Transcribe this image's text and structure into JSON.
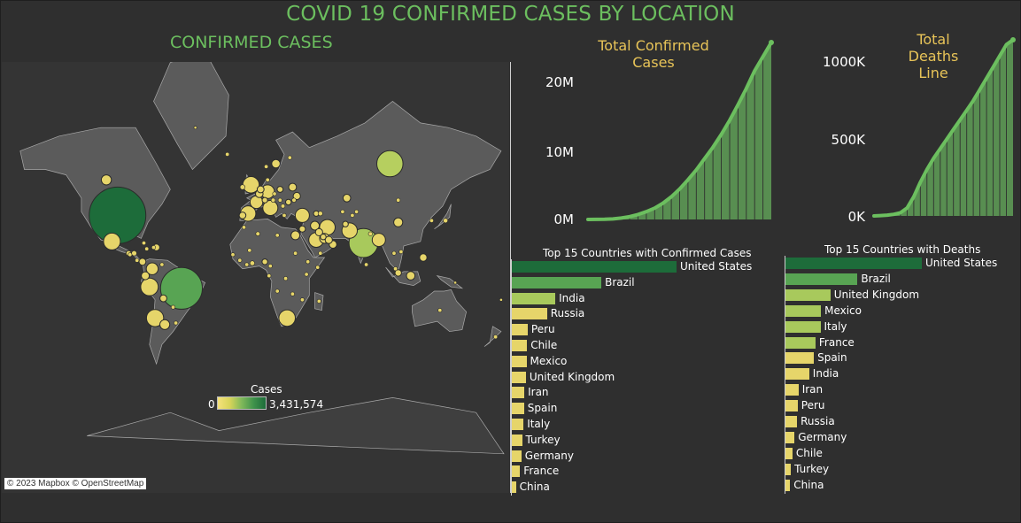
{
  "dashboard": {
    "title": "COVID 19 CONFIRMED CASES BY LOCATION",
    "map_title": "CONFIRMED CASES",
    "attribution": "© 2023 Mapbox © OpenStreetMap",
    "legend": {
      "title": "Cases",
      "min": "0",
      "max": "3,431,574"
    },
    "colors": {
      "title": "#6cbf5f",
      "accent": "#e8c458",
      "line": "#6cbf5f",
      "dark_green": "#1d6c3a",
      "yellow": "#e8d66a"
    }
  },
  "chart_data": [
    {
      "type": "area",
      "title": "Total Confirmed Cases",
      "y_ticks": [
        "0M",
        "10M",
        "20M"
      ],
      "ylim": [
        0,
        25000000
      ],
      "series": [
        {
          "values": [
            0,
            10000,
            30000,
            80000,
            200000,
            400000,
            700000,
            1100000,
            1600000,
            2300000,
            3200000,
            4300000,
            5600000,
            7000000,
            8600000,
            10200000,
            12000000,
            14000000,
            16200000,
            18500000,
            21000000,
            23000000,
            25000000
          ]
        }
      ]
    },
    {
      "type": "area",
      "title": "Total Deaths Line",
      "y_ticks": [
        "0K",
        "500K",
        "1000K"
      ],
      "ylim": [
        0,
        1100000
      ],
      "series": [
        {
          "values": [
            0,
            2000,
            5000,
            10000,
            20000,
            50000,
            120000,
            210000,
            290000,
            360000,
            420000,
            480000,
            540000,
            600000,
            660000,
            720000,
            790000,
            860000,
            930000,
            1000000,
            1070000,
            1100000
          ]
        }
      ]
    },
    {
      "type": "bar",
      "title": "Top 15 Countries with Confirmed Cases",
      "categories": [
        "United States",
        "Brazil",
        "India",
        "Russia",
        "Peru",
        "Chile",
        "Mexico",
        "United Kingdom",
        "Iran",
        "Spain",
        "Italy",
        "Turkey",
        "Germany",
        "France",
        "China"
      ],
      "values": [
        3431574,
        1864681,
        906752,
        732547,
        330123,
        317657,
        304435,
        292931,
        259652,
        253908,
        243061,
        212993,
        199375,
        172377,
        85522
      ]
    },
    {
      "type": "bar",
      "title": "Top 15 Countries with Deaths",
      "categories": [
        "United States",
        "Brazil",
        "United Kingdom",
        "Mexico",
        "Italy",
        "France",
        "Spain",
        "India",
        "Iran",
        "Peru",
        "Russia",
        "Germany",
        "Chile",
        "Turkey",
        "China"
      ],
      "values": [
        136466,
        72100,
        44968,
        35491,
        34967,
        30029,
        28403,
        23727,
        13032,
        12229,
        11614,
        9071,
        7024,
        5363,
        4644
      ]
    }
  ],
  "map_bubbles": [
    {
      "label": "United States",
      "lon": -98,
      "lat": 39,
      "cases": 3431574,
      "color": "#1d6c3a"
    },
    {
      "label": "Brazil",
      "lon": -52,
      "lat": -10,
      "cases": 1864681,
      "color": "#58a453"
    },
    {
      "label": "India",
      "lon": 79,
      "lat": 22,
      "cases": 906752,
      "color": "#a8c95c"
    },
    {
      "label": "Russia",
      "lon": 98,
      "lat": 62,
      "cases": 732547,
      "color": "#b6cf5f"
    },
    {
      "label": "Peru",
      "lon": -75,
      "lat": -9,
      "cases": 330123,
      "color": "#e6d56a"
    },
    {
      "label": "Chile",
      "lon": -71,
      "lat": -30,
      "cases": 317657,
      "color": "#e6d56a"
    },
    {
      "label": "Mexico",
      "lon": -102,
      "lat": 23,
      "cases": 304435,
      "color": "#e6d56a"
    },
    {
      "label": "United Kingdom",
      "lon": -2,
      "lat": 54,
      "cases": 292931,
      "color": "#e6d56a"
    },
    {
      "label": "Iran",
      "lon": 53,
      "lat": 32,
      "cases": 259652,
      "color": "#e6d56a"
    },
    {
      "label": "Spain",
      "lon": -4,
      "lat": 40,
      "cases": 253908,
      "color": "#e6d56a"
    },
    {
      "label": "Italy",
      "lon": 12,
      "lat": 43,
      "cases": 243061,
      "color": "#e6d56a"
    },
    {
      "label": "Turkey",
      "lon": 35,
      "lat": 39,
      "cases": 212993,
      "color": "#e6d56a"
    },
    {
      "label": "Germany",
      "lon": 10,
      "lat": 51,
      "cases": 199375,
      "color": "#e6d56a"
    },
    {
      "label": "France",
      "lon": 2,
      "lat": 46,
      "cases": 172377,
      "color": "#e6d56a"
    },
    {
      "label": "South Africa",
      "lon": 24,
      "lat": -30,
      "cases": 287796,
      "color": "#e6d56a"
    },
    {
      "label": "Pakistan",
      "lon": 69,
      "lat": 30,
      "cases": 253604,
      "color": "#e6d56a"
    },
    {
      "label": "Saudi Arabia",
      "lon": 45,
      "lat": 24,
      "cases": 235111,
      "color": "#e6d56a"
    },
    {
      "label": "Colombia",
      "lon": -73,
      "lat": 4,
      "cases": 150445,
      "color": "#e6d56a"
    },
    {
      "label": "Bangladesh",
      "lon": 90,
      "lat": 24,
      "cases": 186894,
      "color": "#e6d56a"
    },
    {
      "label": "Argentina",
      "lon": -64,
      "lat": -34,
      "cases": 103265,
      "color": "#e6d56a"
    },
    {
      "label": "Canada",
      "lon": -106,
      "lat": 56,
      "cases": 107347,
      "color": "#e6d56a"
    },
    {
      "label": "Qatar",
      "lon": 51,
      "lat": 25,
      "cases": 104533,
      "color": "#e6d56a"
    },
    {
      "label": "Egypt",
      "lon": 30,
      "lat": 27,
      "cases": 83001,
      "color": "#e6d56a"
    },
    {
      "label": "China",
      "lon": 104,
      "lat": 35,
      "cases": 85522,
      "color": "#e6d56a"
    },
    {
      "label": "Indonesia",
      "lon": 113,
      "lat": -1,
      "cases": 78572,
      "color": "#e6d56a"
    },
    {
      "label": "Sweden",
      "lon": 16,
      "lat": 62,
      "cases": 75826,
      "color": "#e6d56a"
    },
    {
      "label": "Ecuador",
      "lon": -78,
      "lat": -1,
      "cases": 67209,
      "color": "#e6d56a"
    },
    {
      "label": "Belarus",
      "lon": 28,
      "lat": 53,
      "cases": 65443,
      "color": "#e6d56a"
    },
    {
      "label": "Belgium",
      "lon": 4,
      "lat": 50,
      "cases": 62872,
      "color": "#e6d56a"
    },
    {
      "label": "Kazakhstan",
      "lon": 67,
      "lat": 48,
      "cases": 61755,
      "color": "#e6d56a"
    },
    {
      "label": "Oman",
      "lon": 57,
      "lat": 21,
      "cases": 62574,
      "color": "#e6d56a"
    },
    {
      "label": "Philippines",
      "lon": 122,
      "lat": 12,
      "cases": 58850,
      "color": "#e6d56a"
    },
    {
      "label": "Ukraine",
      "lon": 31,
      "lat": 49,
      "cases": 56455,
      "color": "#e6d56a"
    },
    {
      "label": "Kuwait",
      "lon": 47,
      "lat": 29,
      "cases": 56877,
      "color": "#e6d56a"
    },
    {
      "label": "UAE",
      "lon": 54,
      "lat": 24,
      "cases": 55198,
      "color": "#e6d56a"
    },
    {
      "label": "Bolivia",
      "lon": -65,
      "lat": -17,
      "cases": 50867,
      "color": "#e6d56a"
    },
    {
      "label": "Netherlands",
      "lon": 5,
      "lat": 52,
      "cases": 51351,
      "color": "#e6d56a"
    },
    {
      "label": "Panama",
      "lon": -80,
      "lat": 9,
      "cases": 50373,
      "color": "#e6d56a"
    },
    {
      "label": "Portugal",
      "lon": -8,
      "lat": 39,
      "cases": 47426,
      "color": "#e6d56a"
    },
    {
      "label": "Dominican Republic",
      "lon": -70,
      "lat": 19,
      "cases": 48743,
      "color": "#e6d56a"
    },
    {
      "label": "Iraq",
      "lon": 44,
      "lat": 33,
      "cases": 83867,
      "color": "#e6d56a"
    },
    {
      "label": "Singapore",
      "lon": 104,
      "lat": 1,
      "cases": 46630,
      "color": "#e6d56a"
    },
    {
      "label": "Poland",
      "lon": 19,
      "lat": 52,
      "cases": 38190,
      "color": "#e6d56a"
    },
    {
      "label": "Israel",
      "lon": 35,
      "lat": 31,
      "cases": 40632,
      "color": "#e6d56a"
    },
    {
      "label": "Afghanistan",
      "lon": 66,
      "lat": 34,
      "cases": 34740,
      "color": "#e6d56a"
    },
    {
      "label": "Switzerland",
      "lon": 8,
      "lat": 47,
      "cases": 32946,
      "color": "#e6d56a"
    },
    {
      "label": "Romania",
      "lon": 25,
      "lat": 46,
      "cases": 33585,
      "color": "#e6d56a"
    },
    {
      "label": "Nigeria",
      "lon": 8,
      "lat": 9,
      "cases": 33616,
      "color": "#e6d56a"
    },
    {
      "label": "Guatemala",
      "lon": -90,
      "lat": 15,
      "cases": 32939,
      "color": "#e6d56a"
    },
    {
      "label": "Honduras",
      "lon": -86,
      "lat": 15,
      "cases": 29106,
      "color": "#e6d56a"
    },
    {
      "label": "Bahrain",
      "lon": 50,
      "lat": 26,
      "cases": 34078,
      "color": "#e6d56a"
    },
    {
      "label": "Armenia",
      "lon": 45,
      "lat": 40,
      "cases": 33005,
      "color": "#e6d56a"
    },
    {
      "label": "Japan",
      "lon": 138,
      "lat": 36,
      "cases": 22508,
      "color": "#e6d56a"
    },
    {
      "label": "Ireland",
      "lon": -8,
      "lat": 53,
      "cases": 25638,
      "color": "#e6d56a"
    },
    {
      "label": "Ghana",
      "lon": -1,
      "lat": 8,
      "cases": 25252,
      "color": "#e6d56a"
    },
    {
      "label": "Algeria",
      "lon": 3,
      "lat": 28,
      "cases": 19195,
      "color": "#e6d56a"
    },
    {
      "label": "Azerbaijan",
      "lon": 48,
      "lat": 40,
      "cases": 23521,
      "color": "#e6d56a"
    },
    {
      "label": "Moldova",
      "lon": 29,
      "lat": 47,
      "cases": 18666,
      "color": "#e6d56a"
    },
    {
      "label": "Austria",
      "lon": 14,
      "lat": 47,
      "cases": 18714,
      "color": "#e6d56a"
    },
    {
      "label": "Serbia",
      "lon": 21,
      "lat": 44,
      "cases": 18073,
      "color": "#e6d56a"
    },
    {
      "label": "Morocco",
      "lon": -7,
      "lat": 32,
      "cases": 16545,
      "color": "#e6d56a"
    },
    {
      "label": "Nepal",
      "lon": 84,
      "lat": 28,
      "cases": 17177,
      "color": "#e6d56a"
    },
    {
      "label": "Cameroon",
      "lon": 12,
      "lat": 6,
      "cases": 16157,
      "color": "#e6d56a"
    },
    {
      "label": "Korea",
      "lon": 128,
      "lat": 36,
      "cases": 13672,
      "color": "#e6d56a"
    },
    {
      "label": "Denmark",
      "lon": 10,
      "lat": 56,
      "cases": 13262,
      "color": "#e6d56a"
    },
    {
      "label": "Czechia",
      "lon": 15,
      "lat": 50,
      "cases": 13238,
      "color": "#e6d56a"
    },
    {
      "label": "El Salvador",
      "lon": -89,
      "lat": 14,
      "cases": 10957,
      "color": "#e6d56a"
    },
    {
      "label": "Cote d'Ivoire",
      "lon": -5,
      "lat": 7,
      "cases": 13554,
      "color": "#e6d56a"
    },
    {
      "label": "Kenya",
      "lon": 38,
      "lat": 0,
      "cases": 11252,
      "color": "#e6d56a"
    },
    {
      "label": "Australia",
      "lon": 134,
      "lat": -25,
      "cases": 10251,
      "color": "#e6d56a"
    },
    {
      "label": "Venezuela",
      "lon": -66,
      "lat": 7,
      "cases": 10428,
      "color": "#e6d56a"
    },
    {
      "label": "Sudan",
      "lon": 30,
      "lat": 15,
      "cases": 10527,
      "color": "#e6d56a"
    },
    {
      "label": "Ethiopia",
      "lon": 39,
      "lat": 9,
      "cases": 8181,
      "color": "#e6d56a"
    },
    {
      "label": "Norway",
      "lon": 9,
      "lat": 61,
      "cases": 9015,
      "color": "#e6d56a"
    },
    {
      "label": "Malaysia",
      "lon": 102,
      "lat": 4,
      "cases": 8737,
      "color": "#e6d56a"
    },
    {
      "label": "Senegal",
      "lon": -15,
      "lat": 14,
      "cases": 8198,
      "color": "#e6d56a"
    },
    {
      "label": "Finland",
      "lon": 26,
      "lat": 64,
      "cases": 7293,
      "color": "#e6d56a"
    },
    {
      "label": "Costa Rica",
      "lon": -84,
      "lat": 10,
      "cases": 7596,
      "color": "#e6d56a"
    },
    {
      "label": "Haiti",
      "lon": -72,
      "lat": 19,
      "cases": 6727,
      "color": "#e6d56a"
    },
    {
      "label": "Congo DR",
      "lon": 23,
      "lat": -3,
      "cases": 8075,
      "color": "#e6d56a"
    },
    {
      "label": "Tajikistan",
      "lon": 71,
      "lat": 39,
      "cases": 6741,
      "color": "#e6d56a"
    },
    {
      "label": "Guinea",
      "lon": -10,
      "lat": 10,
      "cases": 6141,
      "color": "#e6d56a"
    },
    {
      "label": "Gabon",
      "lon": 11,
      "lat": -1,
      "cases": 6026,
      "color": "#e6d56a"
    },
    {
      "label": "Kyrgyzstan",
      "lon": 74,
      "lat": 41,
      "cases": 10410,
      "color": "#e6d56a"
    },
    {
      "label": "Uzbekistan",
      "lon": 64,
      "lat": 41,
      "cases": 14275,
      "color": "#e6d56a"
    },
    {
      "label": "Greece",
      "lon": 22,
      "lat": 39,
      "cases": 3803,
      "color": "#e6d56a"
    },
    {
      "label": "Hungary",
      "lon": 19,
      "lat": 47,
      "cases": 4234,
      "color": "#e6d56a"
    },
    {
      "label": "Thailand",
      "lon": 101,
      "lat": 15,
      "cases": 3220,
      "color": "#e6d56a"
    },
    {
      "label": "Paraguay",
      "lon": -58,
      "lat": -23,
      "cases": 3198,
      "color": "#e6d56a"
    },
    {
      "label": "Uruguay",
      "lon": -56,
      "lat": -33,
      "cases": 1009,
      "color": "#e6d56a"
    },
    {
      "label": "New Zealand",
      "lon": 174,
      "lat": -41,
      "cases": 1548,
      "color": "#e6d56a"
    },
    {
      "label": "Madagascar",
      "lon": 47,
      "lat": -19,
      "cases": 6089,
      "color": "#e6d56a"
    },
    {
      "label": "Zambia",
      "lon": 28,
      "lat": -14,
      "cases": 2980,
      "color": "#e6d56a"
    },
    {
      "label": "Mozambique",
      "lon": 35,
      "lat": -18,
      "cases": 1383,
      "color": "#e6d56a"
    },
    {
      "label": "Angola",
      "lon": 17,
      "lat": -12,
      "cases": 749,
      "color": "#e6d56a"
    },
    {
      "label": "Libya",
      "lon": 17,
      "lat": 27,
      "cases": 1652,
      "color": "#e6d56a"
    },
    {
      "label": "Mali",
      "lon": -3,
      "lat": 17,
      "cases": 2475,
      "color": "#e6d56a"
    },
    {
      "label": "Somalia",
      "lon": 46,
      "lat": 5,
      "cases": 3083,
      "color": "#e6d56a"
    },
    {
      "label": "Yemen",
      "lon": 48,
      "lat": 15,
      "cases": 1619,
      "color": "#e6d56a"
    },
    {
      "label": "Mongolia",
      "lon": 104,
      "lat": 47,
      "cases": 262,
      "color": "#e6d56a"
    },
    {
      "label": "Sri Lanka",
      "lon": 81,
      "lat": 7,
      "cases": 2687,
      "color": "#e6d56a"
    },
    {
      "label": "Vietnam",
      "lon": 106,
      "lat": 16,
      "cases": 381,
      "color": "#e6d56a"
    },
    {
      "label": "Cuba",
      "lon": -79,
      "lat": 22,
      "cases": 2446,
      "color": "#e6d56a"
    },
    {
      "label": "Jamaica",
      "lon": -77,
      "lat": 18,
      "cases": 763,
      "color": "#e6d56a"
    },
    {
      "label": "Iceland",
      "lon": -19,
      "lat": 65,
      "cases": 1900,
      "color": "#e6d56a"
    },
    {
      "label": "Papua New Guinea",
      "lon": 145,
      "lat": -6,
      "cases": 30,
      "color": "#e6d56a"
    },
    {
      "label": "Fiji",
      "lon": 178,
      "lat": -18,
      "cases": 26,
      "color": "#e6d56a"
    },
    {
      "label": "Greenland",
      "lon": -42,
      "lat": 72,
      "cases": 13,
      "color": "#e6d56a"
    }
  ]
}
